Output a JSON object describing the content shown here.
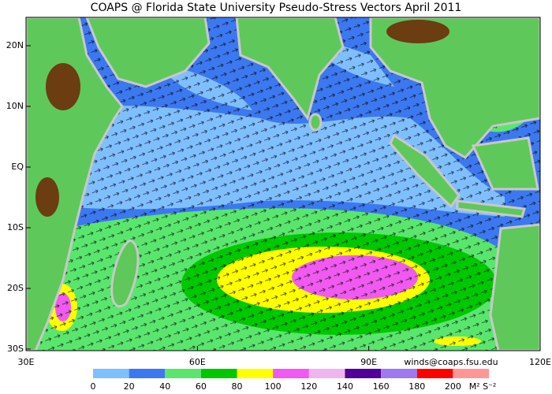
{
  "title": "COAPS @ Florida State University Pseudo-Stress Vectors April 2011",
  "map": {
    "lon_ticks": [
      {
        "value": 30,
        "label": "30E"
      },
      {
        "value": 60,
        "label": "60E"
      },
      {
        "value": 90,
        "label": "90E"
      },
      {
        "value": 120,
        "label": "120E"
      }
    ],
    "lat_ticks": [
      {
        "value": 20,
        "label": "20N"
      },
      {
        "value": 10,
        "label": "10N"
      },
      {
        "value": 0,
        "label": "EQ"
      },
      {
        "value": -10,
        "label": "10S"
      },
      {
        "value": -20,
        "label": "20S"
      },
      {
        "value": -30,
        "label": "30S"
      }
    ],
    "credit": "winds@coaps.fsu.edu"
  },
  "colorbar": {
    "ticks": [
      0,
      20,
      40,
      60,
      80,
      100,
      120,
      140,
      160,
      180,
      200
    ],
    "colors": [
      "#7fbfff",
      "#3c78f0",
      "#5ae66e",
      "#00c800",
      "#ffff00",
      "#f05af0",
      "#f0b4f0",
      "#500096",
      "#a078f0",
      "#ff0000",
      "#ff9696"
    ],
    "unit_label": "M² S⁻²"
  }
}
